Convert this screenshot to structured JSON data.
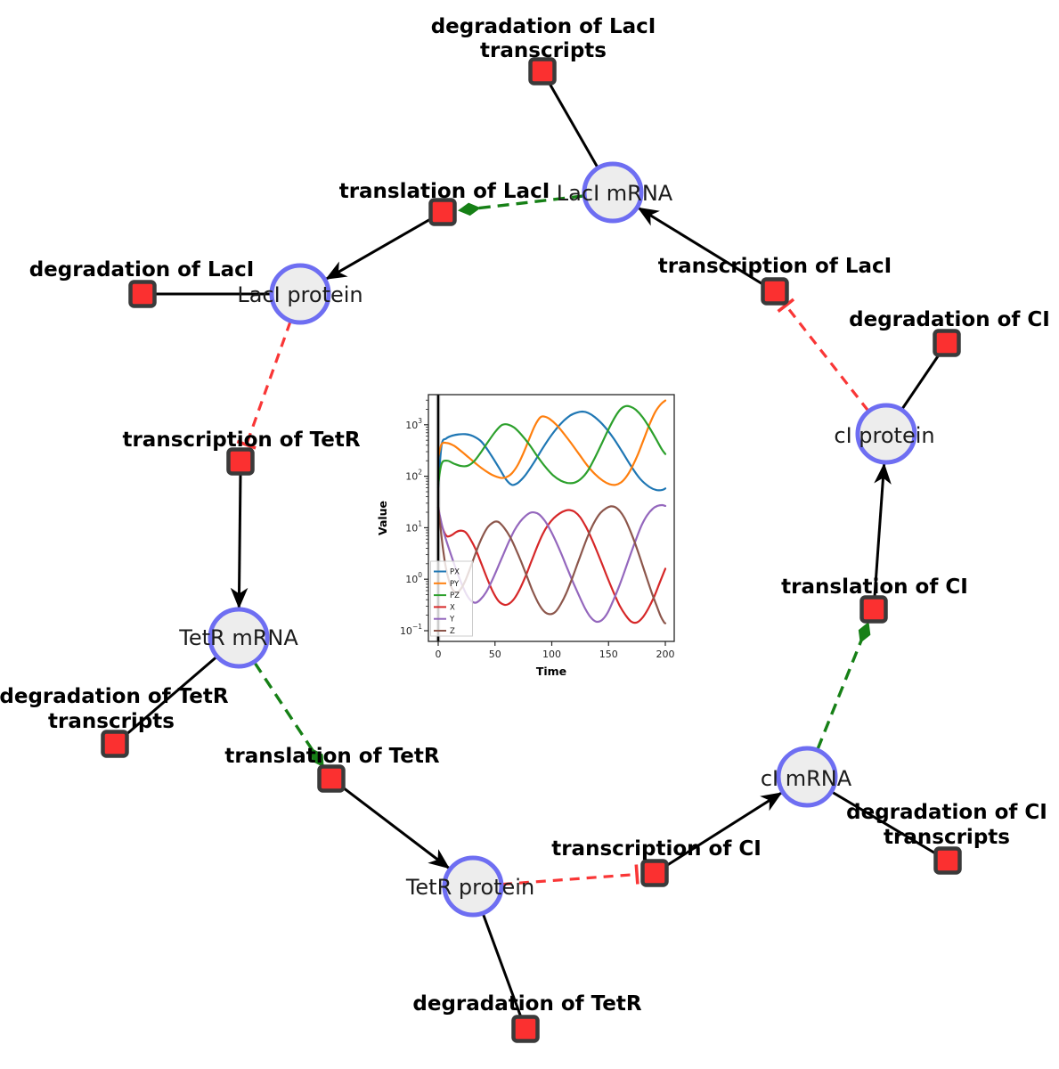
{
  "colors": {
    "species_fill": "#ededed",
    "species_stroke": "#6e6ef2",
    "reaction_fill": "#fb3030",
    "reaction_stroke": "#3a3a3a",
    "edge_black": "#000000",
    "activation_green": "#168016",
    "inhibition_red": "#f93636"
  },
  "network": {
    "species": [
      {
        "label": "LacI mRNA"
      },
      {
        "label": "LacI protein"
      },
      {
        "label": "cI protein"
      },
      {
        "label": "TetR mRNA"
      },
      {
        "label": "TetR protein"
      },
      {
        "label": "cI mRNA"
      }
    ],
    "reactions": [
      {
        "lines": [
          "degradation of LacI",
          "transcripts"
        ]
      },
      {
        "lines": [
          "translation of LacI"
        ]
      },
      {
        "lines": [
          "degradation of LacI"
        ]
      },
      {
        "lines": [
          "transcription of LacI"
        ]
      },
      {
        "lines": [
          "degradation of CI"
        ]
      },
      {
        "lines": [
          "transcription of TetR"
        ]
      },
      {
        "lines": [
          "degradation of TetR",
          "transcripts"
        ]
      },
      {
        "lines": [
          "translation of TetR"
        ]
      },
      {
        "lines": [
          "degradation of TetR"
        ]
      },
      {
        "lines": [
          "transcription of CI"
        ]
      },
      {
        "lines": [
          "translation of CI"
        ]
      },
      {
        "lines": [
          "degradation of CI",
          "transcripts"
        ]
      }
    ]
  },
  "chart_data": {
    "type": "line",
    "title": "",
    "xlabel": "Time",
    "ylabel": "Value",
    "x_ticks": [
      0,
      50,
      100,
      150,
      200
    ],
    "y_tick_exponents": [
      -1,
      0,
      1,
      2,
      3
    ],
    "xlim": [
      -9,
      208
    ],
    "ylim_log10": [
      -1.21,
      3.58
    ],
    "ylog": true,
    "grid": false,
    "legend_position": "lower left",
    "init_vline_x": 0,
    "series": [
      {
        "name": "PX",
        "color": "#1f77b4",
        "points": [
          [
            0,
            60
          ],
          [
            3,
            400
          ],
          [
            7,
            540
          ],
          [
            12,
            610
          ],
          [
            18,
            650
          ],
          [
            24,
            655
          ],
          [
            30,
            610
          ],
          [
            38,
            470
          ],
          [
            46,
            270
          ],
          [
            54,
            140
          ],
          [
            60,
            85
          ],
          [
            65,
            68
          ],
          [
            70,
            74
          ],
          [
            76,
            100
          ],
          [
            84,
            180
          ],
          [
            92,
            350
          ],
          [
            100,
            640
          ],
          [
            108,
            1050
          ],
          [
            116,
            1500
          ],
          [
            122,
            1720
          ],
          [
            127,
            1800
          ],
          [
            132,
            1700
          ],
          [
            138,
            1400
          ],
          [
            146,
            950
          ],
          [
            154,
            560
          ],
          [
            162,
            300
          ],
          [
            170,
            155
          ],
          [
            178,
            88
          ],
          [
            186,
            62
          ],
          [
            192,
            54
          ],
          [
            197,
            54
          ],
          [
            200,
            58
          ]
        ]
      },
      {
        "name": "PY",
        "color": "#ff7f0e",
        "points": [
          [
            0,
            230
          ],
          [
            3,
            420
          ],
          [
            8,
            440
          ],
          [
            14,
            390
          ],
          [
            20,
            310
          ],
          [
            27,
            230
          ],
          [
            34,
            170
          ],
          [
            41,
            130
          ],
          [
            48,
            105
          ],
          [
            55,
            93
          ],
          [
            60,
            96
          ],
          [
            65,
            115
          ],
          [
            70,
            165
          ],
          [
            75,
            280
          ],
          [
            80,
            520
          ],
          [
            85,
            950
          ],
          [
            90,
            1400
          ],
          [
            94,
            1430
          ],
          [
            98,
            1300
          ],
          [
            104,
            1000
          ],
          [
            110,
            700
          ],
          [
            117,
            440
          ],
          [
            124,
            270
          ],
          [
            131,
            165
          ],
          [
            138,
            110
          ],
          [
            145,
            82
          ],
          [
            151,
            70
          ],
          [
            156,
            68
          ],
          [
            161,
            76
          ],
          [
            166,
            100
          ],
          [
            171,
            155
          ],
          [
            176,
            270
          ],
          [
            181,
            520
          ],
          [
            186,
            1000
          ],
          [
            191,
            1750
          ],
          [
            196,
            2500
          ],
          [
            200,
            2950
          ]
        ]
      },
      {
        "name": "PZ",
        "color": "#2ca02c",
        "points": [
          [
            0,
            70
          ],
          [
            3,
            175
          ],
          [
            8,
            200
          ],
          [
            14,
            175
          ],
          [
            20,
            158
          ],
          [
            26,
            160
          ],
          [
            32,
            200
          ],
          [
            38,
            300
          ],
          [
            44,
            470
          ],
          [
            50,
            720
          ],
          [
            55,
            950
          ],
          [
            58,
            1020
          ],
          [
            62,
            1000
          ],
          [
            67,
            880
          ],
          [
            73,
            650
          ],
          [
            80,
            420
          ],
          [
            87,
            250
          ],
          [
            94,
            155
          ],
          [
            101,
            105
          ],
          [
            108,
            82
          ],
          [
            114,
            74
          ],
          [
            120,
            75
          ],
          [
            126,
            90
          ],
          [
            132,
            130
          ],
          [
            138,
            230
          ],
          [
            144,
            430
          ],
          [
            150,
            820
          ],
          [
            156,
            1450
          ],
          [
            161,
            2050
          ],
          [
            165,
            2300
          ],
          [
            169,
            2250
          ],
          [
            174,
            1950
          ],
          [
            180,
            1400
          ],
          [
            186,
            880
          ],
          [
            192,
            520
          ],
          [
            197,
            330
          ],
          [
            200,
            270
          ]
        ]
      },
      {
        "name": "X",
        "color": "#d62728",
        "points": [
          [
            0,
            25
          ],
          [
            2,
            14
          ],
          [
            5,
            8.5
          ],
          [
            8,
            6.8
          ],
          [
            12,
            7.2
          ],
          [
            16,
            8.3
          ],
          [
            20,
            8.8
          ],
          [
            24,
            8.2
          ],
          [
            28,
            6.2
          ],
          [
            33,
            3.8
          ],
          [
            38,
            2.0
          ],
          [
            43,
            1.05
          ],
          [
            48,
            0.58
          ],
          [
            53,
            0.38
          ],
          [
            58,
            0.32
          ],
          [
            62,
            0.33
          ],
          [
            67,
            0.42
          ],
          [
            72,
            0.65
          ],
          [
            77,
            1.15
          ],
          [
            82,
            2.2
          ],
          [
            87,
            4.2
          ],
          [
            92,
            7.5
          ],
          [
            97,
            11.5
          ],
          [
            102,
            15.5
          ],
          [
            107,
            19
          ],
          [
            112,
            21.5
          ],
          [
            116,
            22
          ],
          [
            120,
            20.5
          ],
          [
            125,
            16
          ],
          [
            130,
            10.5
          ],
          [
            135,
            6.2
          ],
          [
            140,
            3.4
          ],
          [
            145,
            1.8
          ],
          [
            150,
            0.95
          ],
          [
            155,
            0.52
          ],
          [
            160,
            0.3
          ],
          [
            165,
            0.2
          ],
          [
            170,
            0.15
          ],
          [
            175,
            0.145
          ],
          [
            180,
            0.18
          ],
          [
            185,
            0.27
          ],
          [
            190,
            0.45
          ],
          [
            195,
            0.85
          ],
          [
            200,
            1.6
          ]
        ]
      },
      {
        "name": "Y",
        "color": "#9467bd",
        "points": [
          [
            0,
            25
          ],
          [
            2,
            15
          ],
          [
            5,
            8
          ],
          [
            9,
            4.2
          ],
          [
            13,
            2.3
          ],
          [
            17,
            1.3
          ],
          [
            21,
            0.78
          ],
          [
            25,
            0.5
          ],
          [
            29,
            0.38
          ],
          [
            33,
            0.35
          ],
          [
            37,
            0.4
          ],
          [
            42,
            0.55
          ],
          [
            47,
            0.9
          ],
          [
            52,
            1.6
          ],
          [
            57,
            2.9
          ],
          [
            62,
            5.2
          ],
          [
            67,
            8.8
          ],
          [
            72,
            13
          ],
          [
            77,
            17
          ],
          [
            81,
            19.5
          ],
          [
            85,
            19.8
          ],
          [
            89,
            18
          ],
          [
            94,
            13.5
          ],
          [
            99,
            8.8
          ],
          [
            104,
            5.2
          ],
          [
            109,
            2.9
          ],
          [
            114,
            1.55
          ],
          [
            119,
            0.85
          ],
          [
            124,
            0.48
          ],
          [
            129,
            0.28
          ],
          [
            134,
            0.185
          ],
          [
            139,
            0.15
          ],
          [
            144,
            0.16
          ],
          [
            149,
            0.22
          ],
          [
            154,
            0.38
          ],
          [
            159,
            0.7
          ],
          [
            164,
            1.4
          ],
          [
            169,
            2.9
          ],
          [
            174,
            5.8
          ],
          [
            179,
            11
          ],
          [
            184,
            17.5
          ],
          [
            189,
            23.5
          ],
          [
            193,
            26.5
          ],
          [
            197,
            27.5
          ],
          [
            200,
            26.5
          ]
        ]
      },
      {
        "name": "Z",
        "color": "#8c564b",
        "points": [
          [
            0,
            25
          ],
          [
            2,
            10
          ],
          [
            4,
            4.2
          ],
          [
            6,
            2.1
          ],
          [
            8,
            1.25
          ],
          [
            11,
            0.75
          ],
          [
            14,
            0.58
          ],
          [
            17,
            0.56
          ],
          [
            20,
            0.65
          ],
          [
            24,
            0.95
          ],
          [
            28,
            1.6
          ],
          [
            32,
            2.8
          ],
          [
            36,
            4.8
          ],
          [
            40,
            7.5
          ],
          [
            44,
            10.5
          ],
          [
            48,
            12.5
          ],
          [
            51,
            13.2
          ],
          [
            54,
            12.5
          ],
          [
            58,
            10
          ],
          [
            63,
            6.8
          ],
          [
            68,
            4
          ],
          [
            73,
            2.2
          ],
          [
            78,
            1.15
          ],
          [
            83,
            0.6
          ],
          [
            88,
            0.35
          ],
          [
            93,
            0.24
          ],
          [
            98,
            0.21
          ],
          [
            103,
            0.23
          ],
          [
            108,
            0.33
          ],
          [
            113,
            0.55
          ],
          [
            118,
            1.05
          ],
          [
            123,
            2.1
          ],
          [
            128,
            4.2
          ],
          [
            133,
            8
          ],
          [
            138,
            13.5
          ],
          [
            143,
            19.5
          ],
          [
            148,
            24
          ],
          [
            152,
            26
          ],
          [
            156,
            25
          ],
          [
            160,
            21
          ],
          [
            164,
            15.5
          ],
          [
            168,
            10
          ],
          [
            172,
            6
          ],
          [
            176,
            3.4
          ],
          [
            180,
            1.85
          ],
          [
            184,
            1.0
          ],
          [
            188,
            0.55
          ],
          [
            192,
            0.32
          ],
          [
            196,
            0.19
          ],
          [
            199,
            0.145
          ],
          [
            200,
            0.14
          ]
        ]
      }
    ]
  }
}
